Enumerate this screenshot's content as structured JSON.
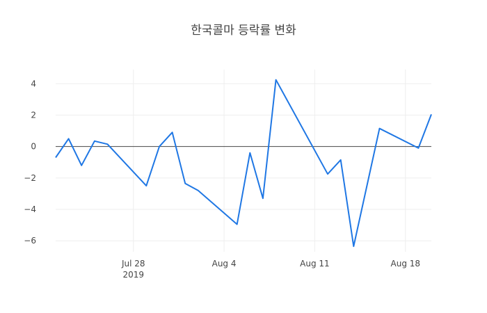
{
  "chart_data": {
    "type": "line",
    "title": "한국콜마 등락률 변화",
    "xlabel": "",
    "ylabel": "",
    "x_tick_labels": [
      {
        "date": "2019-07-28",
        "label": "Jul 28",
        "sublabel": "2019"
      },
      {
        "date": "2019-08-04",
        "label": "Aug 4",
        "sublabel": ""
      },
      {
        "date": "2019-08-11",
        "label": "Aug 11",
        "sublabel": ""
      },
      {
        "date": "2019-08-18",
        "label": "Aug 18",
        "sublabel": ""
      }
    ],
    "y_ticks": [
      4,
      2,
      0,
      -2,
      -4,
      -6
    ],
    "y_tick_labels": [
      "4",
      "2",
      "0",
      "−2",
      "−4",
      "−6"
    ],
    "xlim": [
      "2019-07-22",
      "2019-08-19"
    ],
    "ylim": [
      -6.7,
      4.9
    ],
    "grid": true,
    "color": "#1f77e4",
    "series": [
      {
        "x": [
          "2019-07-22",
          "2019-07-23",
          "2019-07-24",
          "2019-07-25",
          "2019-07-26",
          "2019-07-29",
          "2019-07-30",
          "2019-07-31",
          "2019-08-01",
          "2019-08-02",
          "2019-08-05",
          "2019-08-06",
          "2019-08-07",
          "2019-08-08",
          "2019-08-12",
          "2019-08-13",
          "2019-08-14",
          "2019-08-16",
          "2019-08-19",
          "2019-08-20"
        ],
        "y": [
          -0.7,
          0.5,
          -1.2,
          0.35,
          0.15,
          -2.5,
          0.0,
          0.9,
          -2.35,
          -2.8,
          -4.95,
          -0.4,
          -3.3,
          4.25,
          -1.75,
          -0.85,
          -6.35,
          1.15,
          -0.1,
          2.05
        ]
      }
    ]
  }
}
